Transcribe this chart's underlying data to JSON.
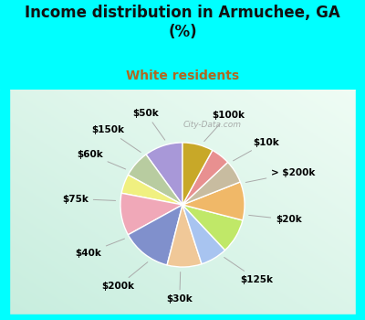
{
  "title": "Income distribution in Armuchee, GA\n(%)",
  "subtitle": "White residents",
  "title_color": "#111111",
  "subtitle_color": "#b06820",
  "bg_cyan": "#00ffff",
  "labels": [
    "$100k",
    "$10k",
    "> $200k",
    "$20k",
    "$125k",
    "$30k",
    "$200k",
    "$40k",
    "$75k",
    "$60k",
    "$150k",
    "$50k"
  ],
  "values": [
    10,
    7,
    5,
    11,
    13,
    9,
    7,
    9,
    10,
    6,
    5,
    8
  ],
  "colors": [
    "#a898d8",
    "#b8cca0",
    "#f0f080",
    "#f0a8b8",
    "#8090cc",
    "#f0c898",
    "#a8c4f0",
    "#c0e868",
    "#f0b868",
    "#c8bca0",
    "#e89090",
    "#c8a828"
  ],
  "wedge_edgecolor": "#ffffff",
  "wedge_linewidth": 1.0,
  "label_fontsize": 7.5,
  "startangle": 90,
  "title_fontsize": 12,
  "subtitle_fontsize": 10
}
